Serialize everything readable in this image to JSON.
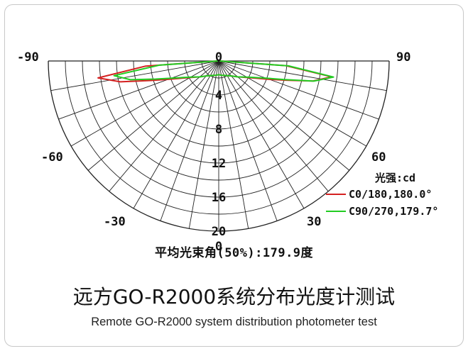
{
  "chart_data": {
    "type": "polar",
    "angle_ticks": [
      "-90",
      "-60",
      "-30",
      "0",
      "30",
      "60",
      "90"
    ],
    "angle_values": [
      -90,
      -60,
      -30,
      0,
      30,
      60,
      90
    ],
    "radial_ticks": [
      "0",
      "4",
      "8",
      "12",
      "16",
      "20"
    ],
    "radial_values": [
      0,
      4,
      8,
      12,
      16,
      20
    ],
    "rlim": [
      0,
      20
    ],
    "unit_label": "光强:cd",
    "grid": true,
    "legend_position": "right",
    "series": [
      {
        "name": "C0/180,180.0°",
        "color": "#d42020",
        "angles": [
          -90,
          -86,
          -82,
          -78,
          -74,
          -70,
          -65,
          -60,
          -50,
          -40,
          -30,
          -20,
          -10,
          0,
          10,
          20,
          30,
          40,
          50,
          60,
          65,
          70,
          74,
          78,
          82,
          86,
          90
        ],
        "values": [
          0.1,
          8.6,
          14.3,
          11.8,
          8.3,
          6.3,
          4.8,
          3.9,
          2.9,
          2.3,
          2.0,
          1.8,
          1.7,
          1.6,
          1.7,
          1.8,
          2.0,
          2.3,
          2.9,
          3.9,
          4.8,
          6.3,
          8.2,
          11.3,
          13.4,
          7.9,
          0.1
        ]
      },
      {
        "name": "C90/270,179.7°",
        "color": "#22cc22",
        "angles": [
          -90,
          -86,
          -82,
          -78,
          -74,
          -70,
          -65,
          -60,
          -50,
          -40,
          -30,
          -20,
          -10,
          0,
          10,
          20,
          30,
          40,
          50,
          60,
          65,
          70,
          74,
          78,
          82,
          86,
          90
        ],
        "values": [
          0.1,
          7.0,
          12.4,
          10.6,
          7.7,
          5.9,
          4.6,
          3.8,
          2.9,
          2.3,
          2.0,
          1.8,
          1.7,
          1.6,
          1.7,
          1.8,
          2.0,
          2.3,
          2.9,
          3.8,
          4.6,
          5.9,
          7.9,
          11.4,
          13.6,
          8.2,
          0.1
        ]
      }
    ]
  },
  "beam_angle_text": "平均光束角(50%):179.9度",
  "title_cn": "远方GO-R2000系统分布光度计测试",
  "title_en": "Remote GO-R2000 system distribution photometer test",
  "colors": {
    "grid": "#222222",
    "background": "#ffffff",
    "frame": "#c8c8c8"
  }
}
